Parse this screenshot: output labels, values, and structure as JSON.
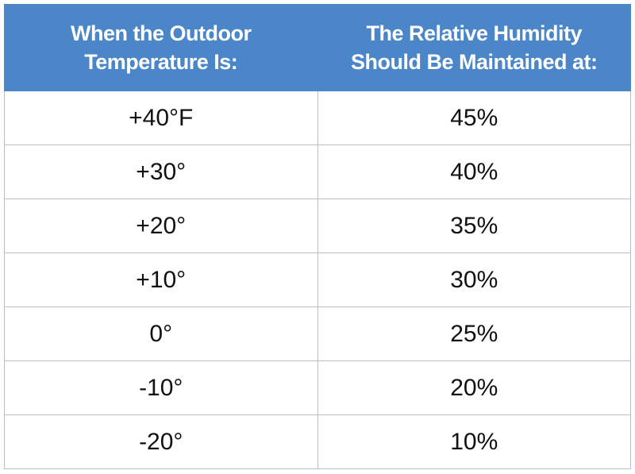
{
  "table": {
    "header": [
      [
        "When the Outdoor",
        "Temperature Is:"
      ],
      [
        "The Relative Humidity",
        "Should Be Maintained at:"
      ]
    ],
    "rows": [
      [
        "+40°F",
        "45%"
      ],
      [
        "+30°",
        "40%"
      ],
      [
        "+20°",
        "35%"
      ],
      [
        "+10°",
        "30%"
      ],
      [
        "0°",
        "25%"
      ],
      [
        "-10°",
        "20%"
      ],
      [
        "-20°",
        "10%"
      ]
    ]
  }
}
